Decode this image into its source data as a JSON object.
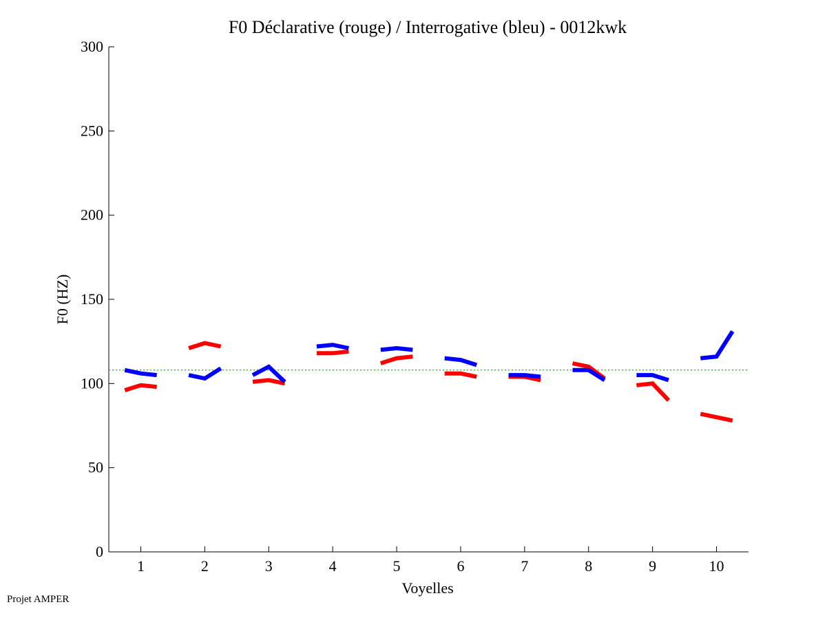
{
  "chart_data": {
    "type": "line",
    "title": "F0 Déclarative (rouge) / Interrogative (bleu) - 0012kwk",
    "xlabel": "Voyelles",
    "ylabel": "F0 (HZ)",
    "xlim": [
      0.5,
      10.5
    ],
    "ylim": [
      0,
      300
    ],
    "xticks": [
      1,
      2,
      3,
      4,
      5,
      6,
      7,
      8,
      9,
      10
    ],
    "xtick_labels": [
      "1",
      "2",
      "3",
      "4",
      "5",
      "6",
      "7",
      "8",
      "9",
      "10"
    ],
    "yticks": [
      0,
      50,
      100,
      150,
      200,
      250,
      300
    ],
    "ytick_labels": [
      "0",
      "50",
      "100",
      "150",
      "200",
      "250",
      "300"
    ],
    "reference_line": {
      "y": 108,
      "color": "#00cc00",
      "style": "dotted"
    },
    "grid": false,
    "colors": {
      "declarative": "#ff0000",
      "interrogative": "#0000ff"
    },
    "series": [
      {
        "color": "#ff0000",
        "segments": [
          {
            "x": [
              0.75,
              1.0,
              1.25
            ],
            "y": [
              96,
              99,
              98
            ]
          },
          {
            "x": [
              1.75,
              2.0,
              2.25
            ],
            "y": [
              121,
              124,
              122
            ]
          },
          {
            "x": [
              2.75,
              3.0,
              3.25
            ],
            "y": [
              101,
              102,
              100
            ]
          },
          {
            "x": [
              3.75,
              4.0,
              4.25
            ],
            "y": [
              118,
              118,
              119
            ]
          },
          {
            "x": [
              4.75,
              5.0,
              5.25
            ],
            "y": [
              112,
              115,
              116
            ]
          },
          {
            "x": [
              5.75,
              6.0,
              6.25
            ],
            "y": [
              106,
              106,
              104
            ]
          },
          {
            "x": [
              6.75,
              7.0,
              7.25
            ],
            "y": [
              104,
              104,
              102
            ]
          },
          {
            "x": [
              7.75,
              8.0,
              8.25
            ],
            "y": [
              112,
              110,
              103
            ]
          },
          {
            "x": [
              8.75,
              9.0,
              9.25
            ],
            "y": [
              99,
              100,
              90
            ]
          },
          {
            "x": [
              9.75,
              10.0,
              10.25
            ],
            "y": [
              82,
              80,
              78
            ]
          }
        ]
      },
      {
        "color": "#0000ff",
        "segments": [
          {
            "x": [
              0.75,
              1.0,
              1.25
            ],
            "y": [
              108,
              106,
              105
            ]
          },
          {
            "x": [
              1.75,
              2.0,
              2.25
            ],
            "y": [
              105,
              103,
              109
            ]
          },
          {
            "x": [
              2.75,
              3.0,
              3.25
            ],
            "y": [
              105,
              110,
              101
            ]
          },
          {
            "x": [
              3.75,
              4.0,
              4.25
            ],
            "y": [
              122,
              123,
              121
            ]
          },
          {
            "x": [
              4.75,
              5.0,
              5.25
            ],
            "y": [
              120,
              121,
              120
            ]
          },
          {
            "x": [
              5.75,
              6.0,
              6.25
            ],
            "y": [
              115,
              114,
              111
            ]
          },
          {
            "x": [
              6.75,
              7.0,
              7.25
            ],
            "y": [
              105,
              105,
              104
            ]
          },
          {
            "x": [
              7.75,
              8.0,
              8.25
            ],
            "y": [
              108,
              108,
              102
            ]
          },
          {
            "x": [
              8.75,
              9.0,
              9.25
            ],
            "y": [
              105,
              105,
              102
            ]
          },
          {
            "x": [
              9.75,
              10.0,
              10.25
            ],
            "y": [
              115,
              116,
              131
            ]
          }
        ]
      }
    ]
  },
  "footer": "Projet AMPER"
}
